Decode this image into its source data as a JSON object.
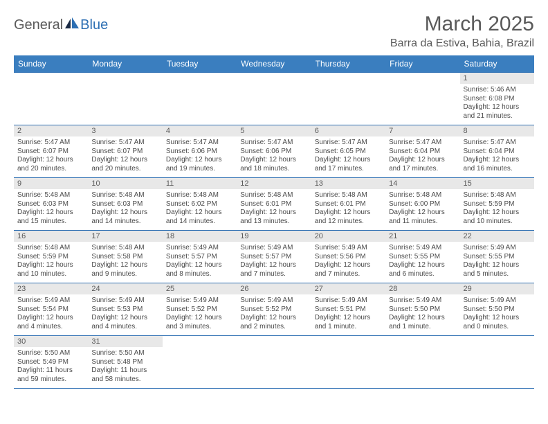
{
  "logo": {
    "part1": "General",
    "part2": "Blue"
  },
  "title": "March 2025",
  "location": "Barra da Estiva, Bahia, Brazil",
  "colors": {
    "header_bg": "#3a7ebf",
    "border": "#2d6fb3",
    "daynum_bg": "#e8e8e8",
    "text": "#4a4a4a",
    "title_text": "#5a5a5a",
    "logo_blue": "#2d6fb3"
  },
  "weekdays": [
    "Sunday",
    "Monday",
    "Tuesday",
    "Wednesday",
    "Thursday",
    "Friday",
    "Saturday"
  ],
  "weeks": [
    [
      null,
      null,
      null,
      null,
      null,
      null,
      {
        "d": "1",
        "sr": "Sunrise: 5:46 AM",
        "ss": "Sunset: 6:08 PM",
        "dl": "Daylight: 12 hours and 21 minutes."
      }
    ],
    [
      {
        "d": "2",
        "sr": "Sunrise: 5:47 AM",
        "ss": "Sunset: 6:07 PM",
        "dl": "Daylight: 12 hours and 20 minutes."
      },
      {
        "d": "3",
        "sr": "Sunrise: 5:47 AM",
        "ss": "Sunset: 6:07 PM",
        "dl": "Daylight: 12 hours and 20 minutes."
      },
      {
        "d": "4",
        "sr": "Sunrise: 5:47 AM",
        "ss": "Sunset: 6:06 PM",
        "dl": "Daylight: 12 hours and 19 minutes."
      },
      {
        "d": "5",
        "sr": "Sunrise: 5:47 AM",
        "ss": "Sunset: 6:06 PM",
        "dl": "Daylight: 12 hours and 18 minutes."
      },
      {
        "d": "6",
        "sr": "Sunrise: 5:47 AM",
        "ss": "Sunset: 6:05 PM",
        "dl": "Daylight: 12 hours and 17 minutes."
      },
      {
        "d": "7",
        "sr": "Sunrise: 5:47 AM",
        "ss": "Sunset: 6:04 PM",
        "dl": "Daylight: 12 hours and 17 minutes."
      },
      {
        "d": "8",
        "sr": "Sunrise: 5:47 AM",
        "ss": "Sunset: 6:04 PM",
        "dl": "Daylight: 12 hours and 16 minutes."
      }
    ],
    [
      {
        "d": "9",
        "sr": "Sunrise: 5:48 AM",
        "ss": "Sunset: 6:03 PM",
        "dl": "Daylight: 12 hours and 15 minutes."
      },
      {
        "d": "10",
        "sr": "Sunrise: 5:48 AM",
        "ss": "Sunset: 6:03 PM",
        "dl": "Daylight: 12 hours and 14 minutes."
      },
      {
        "d": "11",
        "sr": "Sunrise: 5:48 AM",
        "ss": "Sunset: 6:02 PM",
        "dl": "Daylight: 12 hours and 14 minutes."
      },
      {
        "d": "12",
        "sr": "Sunrise: 5:48 AM",
        "ss": "Sunset: 6:01 PM",
        "dl": "Daylight: 12 hours and 13 minutes."
      },
      {
        "d": "13",
        "sr": "Sunrise: 5:48 AM",
        "ss": "Sunset: 6:01 PM",
        "dl": "Daylight: 12 hours and 12 minutes."
      },
      {
        "d": "14",
        "sr": "Sunrise: 5:48 AM",
        "ss": "Sunset: 6:00 PM",
        "dl": "Daylight: 12 hours and 11 minutes."
      },
      {
        "d": "15",
        "sr": "Sunrise: 5:48 AM",
        "ss": "Sunset: 5:59 PM",
        "dl": "Daylight: 12 hours and 10 minutes."
      }
    ],
    [
      {
        "d": "16",
        "sr": "Sunrise: 5:48 AM",
        "ss": "Sunset: 5:59 PM",
        "dl": "Daylight: 12 hours and 10 minutes."
      },
      {
        "d": "17",
        "sr": "Sunrise: 5:48 AM",
        "ss": "Sunset: 5:58 PM",
        "dl": "Daylight: 12 hours and 9 minutes."
      },
      {
        "d": "18",
        "sr": "Sunrise: 5:49 AM",
        "ss": "Sunset: 5:57 PM",
        "dl": "Daylight: 12 hours and 8 minutes."
      },
      {
        "d": "19",
        "sr": "Sunrise: 5:49 AM",
        "ss": "Sunset: 5:57 PM",
        "dl": "Daylight: 12 hours and 7 minutes."
      },
      {
        "d": "20",
        "sr": "Sunrise: 5:49 AM",
        "ss": "Sunset: 5:56 PM",
        "dl": "Daylight: 12 hours and 7 minutes."
      },
      {
        "d": "21",
        "sr": "Sunrise: 5:49 AM",
        "ss": "Sunset: 5:55 PM",
        "dl": "Daylight: 12 hours and 6 minutes."
      },
      {
        "d": "22",
        "sr": "Sunrise: 5:49 AM",
        "ss": "Sunset: 5:55 PM",
        "dl": "Daylight: 12 hours and 5 minutes."
      }
    ],
    [
      {
        "d": "23",
        "sr": "Sunrise: 5:49 AM",
        "ss": "Sunset: 5:54 PM",
        "dl": "Daylight: 12 hours and 4 minutes."
      },
      {
        "d": "24",
        "sr": "Sunrise: 5:49 AM",
        "ss": "Sunset: 5:53 PM",
        "dl": "Daylight: 12 hours and 4 minutes."
      },
      {
        "d": "25",
        "sr": "Sunrise: 5:49 AM",
        "ss": "Sunset: 5:52 PM",
        "dl": "Daylight: 12 hours and 3 minutes."
      },
      {
        "d": "26",
        "sr": "Sunrise: 5:49 AM",
        "ss": "Sunset: 5:52 PM",
        "dl": "Daylight: 12 hours and 2 minutes."
      },
      {
        "d": "27",
        "sr": "Sunrise: 5:49 AM",
        "ss": "Sunset: 5:51 PM",
        "dl": "Daylight: 12 hours and 1 minute."
      },
      {
        "d": "28",
        "sr": "Sunrise: 5:49 AM",
        "ss": "Sunset: 5:50 PM",
        "dl": "Daylight: 12 hours and 1 minute."
      },
      {
        "d": "29",
        "sr": "Sunrise: 5:49 AM",
        "ss": "Sunset: 5:50 PM",
        "dl": "Daylight: 12 hours and 0 minutes."
      }
    ],
    [
      {
        "d": "30",
        "sr": "Sunrise: 5:50 AM",
        "ss": "Sunset: 5:49 PM",
        "dl": "Daylight: 11 hours and 59 minutes."
      },
      {
        "d": "31",
        "sr": "Sunrise: 5:50 AM",
        "ss": "Sunset: 5:48 PM",
        "dl": "Daylight: 11 hours and 58 minutes."
      },
      null,
      null,
      null,
      null,
      null
    ]
  ]
}
